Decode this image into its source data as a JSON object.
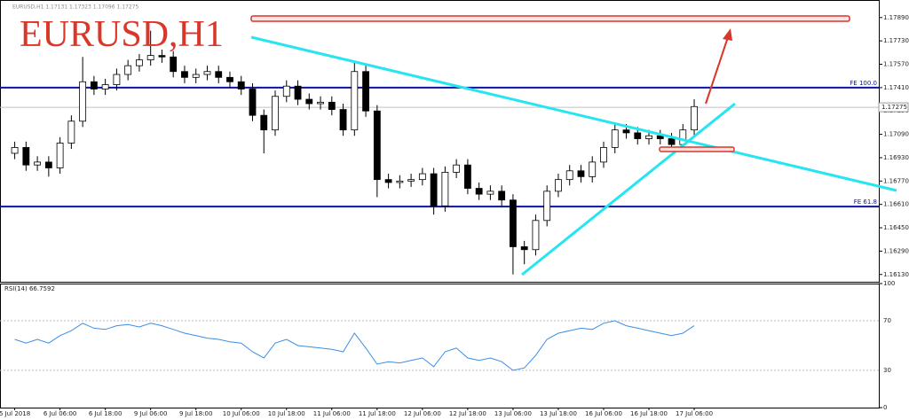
{
  "chart_data": [
    {
      "type": "candlestick",
      "title": "EURUSD,H1",
      "header": "EURUSD,H1  1.17131 1.17323 1.17096 1.17275",
      "x": [
        0,
        1,
        2,
        3,
        4,
        5,
        6,
        7,
        8,
        9,
        10,
        11,
        12,
        13,
        14,
        15,
        16,
        17,
        18,
        19,
        20,
        21,
        22,
        23,
        24,
        25,
        26,
        27,
        28,
        29,
        30,
        31,
        32,
        33,
        34,
        35,
        36,
        37,
        38,
        39,
        40,
        41,
        42,
        43,
        44,
        45,
        46,
        47,
        48,
        49,
        50,
        51,
        52,
        53,
        54,
        55,
        56,
        57,
        58,
        59,
        60
      ],
      "open": [
        1.1696,
        1.17,
        1.1688,
        1.169,
        1.1686,
        1.1703,
        1.1718,
        1.1745,
        1.174,
        1.1743,
        1.175,
        1.1756,
        1.176,
        1.1763,
        1.1762,
        1.1752,
        1.1748,
        1.175,
        1.1752,
        1.1748,
        1.1745,
        1.174,
        1.1722,
        1.1712,
        1.1735,
        1.1742,
        1.1733,
        1.173,
        1.1731,
        1.1726,
        1.1712,
        1.1752,
        1.1725,
        1.1678,
        1.1676,
        1.1677,
        1.1678,
        1.1682,
        1.166,
        1.1683,
        1.1688,
        1.1672,
        1.1668,
        1.167,
        1.1664,
        1.1632,
        1.163,
        1.165,
        1.167,
        1.1678,
        1.1684,
        1.168,
        1.169,
        1.17,
        1.1712,
        1.171,
        1.1706,
        1.1708,
        1.1706,
        1.1702,
        1.1712
      ],
      "high": [
        1.1704,
        1.1704,
        1.1694,
        1.1694,
        1.1707,
        1.1722,
        1.1762,
        1.1749,
        1.1747,
        1.1754,
        1.176,
        1.1764,
        1.178,
        1.1767,
        1.1766,
        1.1756,
        1.1754,
        1.1756,
        1.1756,
        1.1752,
        1.1749,
        1.1744,
        1.1726,
        1.1739,
        1.1746,
        1.1746,
        1.1737,
        1.1735,
        1.1735,
        1.173,
        1.1758,
        1.1756,
        1.1729,
        1.1682,
        1.1681,
        1.1682,
        1.1686,
        1.1686,
        1.1687,
        1.1692,
        1.1692,
        1.1676,
        1.1674,
        1.1674,
        1.1668,
        1.1636,
        1.1654,
        1.1674,
        1.1682,
        1.1688,
        1.1688,
        1.1694,
        1.1704,
        1.1716,
        1.1716,
        1.1714,
        1.1712,
        1.1712,
        1.171,
        1.1716,
        1.1733
      ],
      "low": [
        1.1692,
        1.1684,
        1.1684,
        1.168,
        1.1682,
        1.1699,
        1.1714,
        1.1736,
        1.1736,
        1.1739,
        1.1746,
        1.1752,
        1.1756,
        1.1758,
        1.1748,
        1.1744,
        1.1744,
        1.1746,
        1.1744,
        1.1741,
        1.1736,
        1.1718,
        1.1696,
        1.1708,
        1.1731,
        1.1729,
        1.1726,
        1.1726,
        1.1722,
        1.1708,
        1.1708,
        1.1721,
        1.1666,
        1.1672,
        1.1672,
        1.1673,
        1.1674,
        1.1654,
        1.1656,
        1.1679,
        1.1668,
        1.1664,
        1.1664,
        1.166,
        1.1613,
        1.162,
        1.1626,
        1.1646,
        1.1666,
        1.1674,
        1.1676,
        1.1676,
        1.1686,
        1.1696,
        1.1706,
        1.1702,
        1.1702,
        1.1702,
        1.1698,
        1.1698,
        1.1708
      ],
      "close": [
        1.17,
        1.1688,
        1.169,
        1.1686,
        1.1703,
        1.1718,
        1.1745,
        1.174,
        1.1743,
        1.175,
        1.1756,
        1.176,
        1.1763,
        1.1762,
        1.1752,
        1.1748,
        1.175,
        1.1752,
        1.1748,
        1.1745,
        1.174,
        1.1722,
        1.1712,
        1.1735,
        1.1742,
        1.1733,
        1.173,
        1.1731,
        1.1726,
        1.1712,
        1.1752,
        1.1725,
        1.1678,
        1.1676,
        1.1677,
        1.1678,
        1.1682,
        1.166,
        1.1683,
        1.1688,
        1.1672,
        1.1668,
        1.167,
        1.1664,
        1.1632,
        1.163,
        1.165,
        1.167,
        1.1678,
        1.1684,
        1.168,
        1.169,
        1.17,
        1.1712,
        1.171,
        1.1706,
        1.1708,
        1.1706,
        1.1702,
        1.1712,
        1.1728
      ],
      "up_color": "#ffffff",
      "down_color": "#000000",
      "xlim": [
        -1.3,
        76.3
      ],
      "ylim": [
        1.1608,
        1.1801
      ],
      "yticks": [
        {
          "value": 1.1789,
          "label": "1.17890"
        },
        {
          "value": 1.1773,
          "label": "1.17730"
        },
        {
          "value": 1.1757,
          "label": "1.17570"
        },
        {
          "value": 1.1741,
          "label": "1.17410"
        },
        {
          "value": 1.1725,
          "label": "1.17250"
        },
        {
          "value": 1.1709,
          "label": "1.17090"
        },
        {
          "value": 1.1693,
          "label": "1.16930"
        },
        {
          "value": 1.1677,
          "label": "1.16770"
        },
        {
          "value": 1.1661,
          "label": "1.16610"
        },
        {
          "value": 1.1645,
          "label": "1.16450"
        },
        {
          "value": 1.1629,
          "label": "1.16290"
        },
        {
          "value": 1.1613,
          "label": "1.16130"
        }
      ],
      "last_price": 1.17275,
      "levels": [
        {
          "name": "FE 100.0",
          "value": 1.1741,
          "color": "#0a14a0"
        },
        {
          "name": "FE 61.8",
          "value": 1.16595,
          "color": "#0a14a0"
        }
      ]
    },
    {
      "type": "line",
      "title": "RSI(14) 66.7592",
      "x": [
        0,
        1,
        2,
        3,
        4,
        5,
        6,
        7,
        8,
        9,
        10,
        11,
        12,
        13,
        14,
        15,
        16,
        17,
        18,
        19,
        20,
        21,
        22,
        23,
        24,
        25,
        26,
        27,
        28,
        29,
        30,
        31,
        32,
        33,
        34,
        35,
        36,
        37,
        38,
        39,
        40,
        41,
        42,
        43,
        44,
        45,
        46,
        47,
        48,
        49,
        50,
        51,
        52,
        53,
        54,
        55,
        56,
        57,
        58,
        59,
        60
      ],
      "values": [
        55,
        52,
        55,
        52,
        58,
        62,
        68,
        64,
        63,
        66,
        67,
        65,
        68,
        66,
        63,
        60,
        58,
        56,
        55,
        53,
        52,
        45,
        40,
        52,
        55,
        50,
        49,
        48,
        47,
        45,
        60,
        48,
        35,
        37,
        36,
        38,
        40,
        33,
        45,
        48,
        40,
        38,
        40,
        37,
        30,
        32,
        42,
        55,
        60,
        62,
        64,
        63,
        68,
        70,
        66,
        64,
        62,
        60,
        58,
        60,
        66
      ],
      "color": "#3a8ee6",
      "xlim": [
        -1.3,
        76.3
      ],
      "ylim": [
        0,
        100
      ],
      "yticks": [
        100,
        70,
        30,
        0
      ],
      "xticks": [
        {
          "value": 0,
          "label": "5 Jul 2018"
        },
        {
          "value": 4,
          "label": "6 Jul 06:00"
        },
        {
          "value": 8,
          "label": "6 Jul 18:00"
        },
        {
          "value": 12,
          "label": "9 Jul 06:00"
        },
        {
          "value": 16,
          "label": "9 Jul 18:00"
        },
        {
          "value": 20,
          "label": "10 Jul 06:00"
        },
        {
          "value": 24,
          "label": "10 Jul 18:00"
        },
        {
          "value": 28,
          "label": "11 Jul 06:00"
        },
        {
          "value": 32,
          "label": "11 Jul 18:00"
        },
        {
          "value": 36,
          "label": "12 Jul 06:00"
        },
        {
          "value": 40,
          "label": "12 Jul 18:00"
        },
        {
          "value": 44,
          "label": "13 Jul 06:00"
        },
        {
          "value": 48,
          "label": "13 Jul 18:00"
        },
        {
          "value": 52,
          "label": "16 Jul 06:00"
        },
        {
          "value": 56,
          "label": "16 Jul 18:00"
        },
        {
          "value": 60,
          "label": "17 Jul 06:00"
        }
      ]
    }
  ]
}
